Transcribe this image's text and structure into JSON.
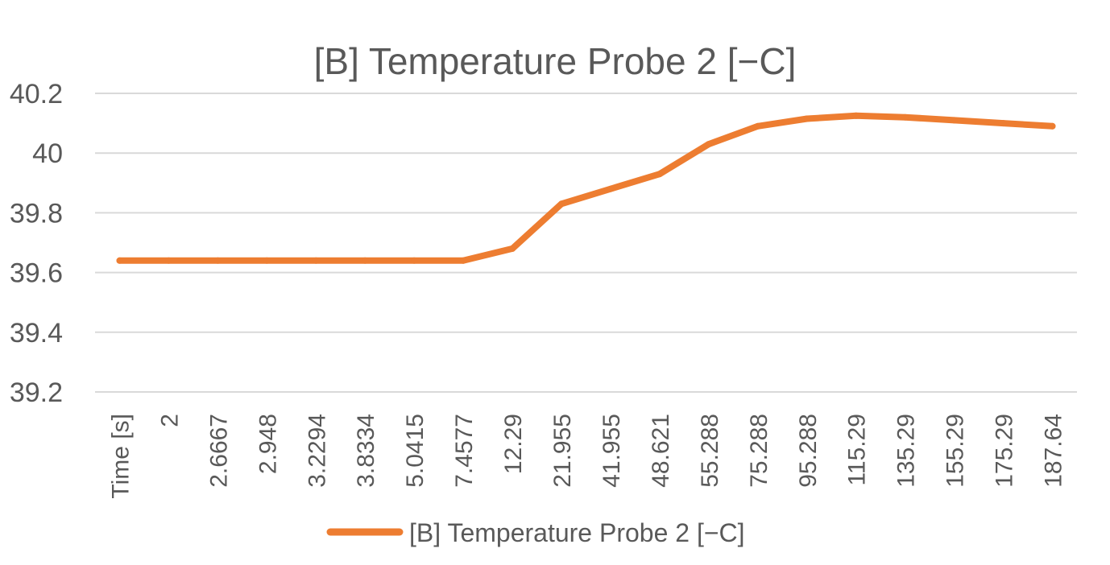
{
  "chart_data": {
    "type": "line",
    "title": "[B] Temperature Probe 2 [−C]",
    "categories": [
      "Time [s]",
      "2",
      "2.6667",
      "2.948",
      "3.2294",
      "3.8334",
      "5.0415",
      "7.4577",
      "12.29",
      "21.955",
      "41.955",
      "48.621",
      "55.288",
      "75.288",
      "95.288",
      "115.29",
      "135.29",
      "155.29",
      "175.29",
      "187.64"
    ],
    "series": [
      {
        "name": "[B] Temperature Probe 2 [−C]",
        "color": "#ed7d31",
        "values": [
          39.64,
          39.64,
          39.64,
          39.64,
          39.64,
          39.64,
          39.64,
          39.64,
          39.68,
          39.83,
          39.88,
          39.93,
          40.03,
          40.09,
          40.115,
          40.125,
          40.12,
          40.11,
          40.1,
          40.09
        ]
      }
    ],
    "yticks": [
      "39.2",
      "39.4",
      "39.6",
      "39.8",
      "40",
      "40.2"
    ],
    "ylim": [
      39.2,
      40.2
    ],
    "grid": true,
    "legend_position": "bottom"
  }
}
